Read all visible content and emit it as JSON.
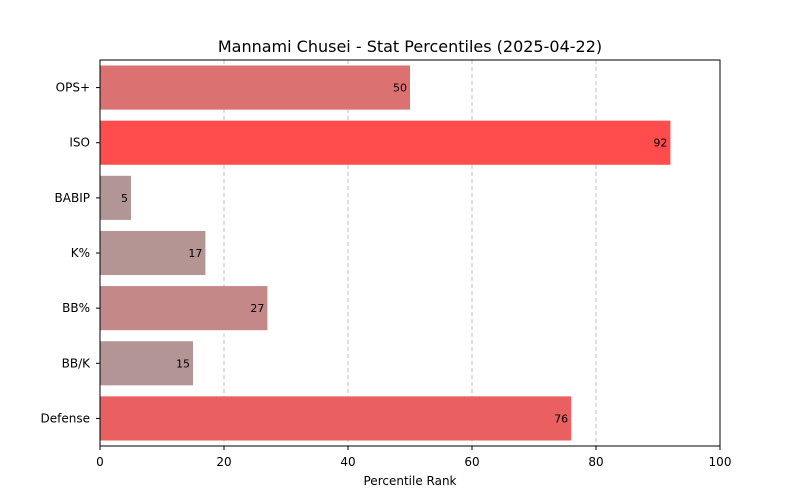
{
  "chart_data": {
    "type": "bar",
    "orientation": "horizontal",
    "title": "Mannami Chusei - Stat Percentiles (2025-04-22)",
    "xlabel": "Percentile Rank",
    "ylabel": "",
    "xlim": [
      0,
      100
    ],
    "xticks": [
      "0",
      "20",
      "40",
      "60",
      "80",
      "100"
    ],
    "grid": "vertical dashed",
    "categories": [
      "OPS+",
      "ISO",
      "BABIP",
      "K%",
      "BB%",
      "BB/K",
      "Defense"
    ],
    "values": [
      50,
      92,
      5,
      17,
      27,
      15,
      76
    ],
    "colors": [
      "#db7271",
      "#ff4d4d",
      "#b29696",
      "#b59494",
      "#c48888",
      "#b49595",
      "#ea5f5f"
    ]
  }
}
